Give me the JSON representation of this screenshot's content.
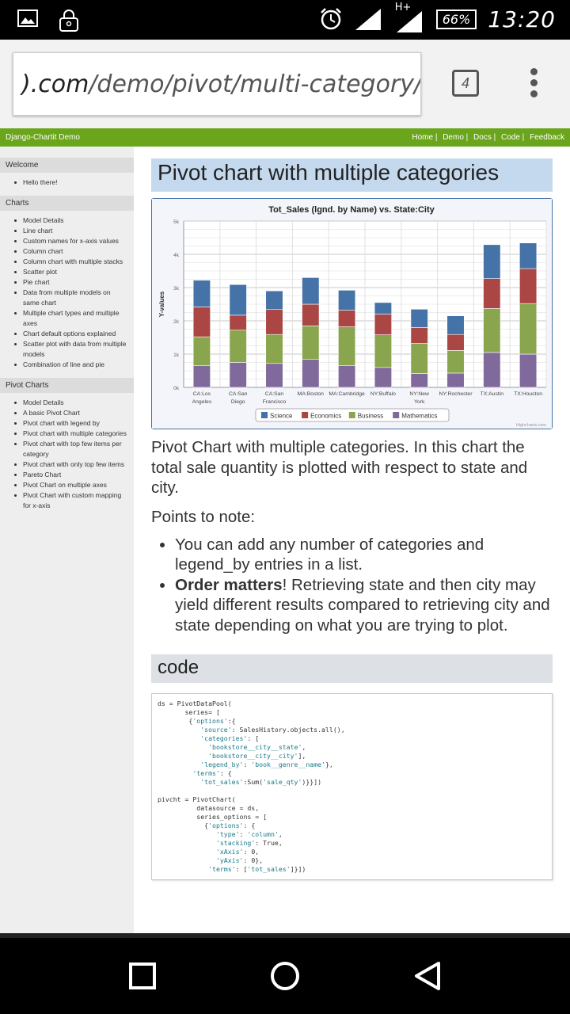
{
  "status": {
    "battery": "66%",
    "time": "13:20",
    "network": "H+"
  },
  "browser": {
    "url_domain": ").com",
    "url_path": "/demo/pivot/multi-category/",
    "tab_count": "4"
  },
  "topnav": {
    "site_title": "Django-Chartit Demo",
    "links": [
      "Home |",
      "Demo |",
      "Docs |",
      "Code |",
      "Feedback"
    ]
  },
  "sidebar": {
    "welcome": {
      "title": "Welcome",
      "items": [
        "Hello there!"
      ]
    },
    "charts": {
      "title": "Charts",
      "items": [
        "Model Details",
        "Line chart",
        "Custom names for x-axis values",
        "Column chart",
        "Column chart with multiple stacks",
        "Scatter plot",
        "Pie chart",
        "Data from multiple models on same chart",
        "Multiple chart types and multiple axes",
        "Chart default options explained",
        "Scatter plot with data from multiple models",
        "Combination of line and pie"
      ]
    },
    "pivot": {
      "title": "Pivot Charts",
      "items": [
        "Model Details",
        "A basic Pivot Chart",
        "Pivot chart with legend by",
        "Pivot chart with multiple categories",
        "Pivot chart with top few items per category",
        "Pivot chart with only top few items",
        "Pareto Chart",
        "Pivot Chart on multiple axes",
        "Pivot Chart with custom mapping for x-axis"
      ]
    }
  },
  "main": {
    "title": "Pivot chart with multiple categories",
    "description": "Pivot Chart with multiple categories. In this chart the total sale quantity is plotted with respect to state and city.",
    "notes_title": "Points to note:",
    "note1": "You can add any number of categories and legend_by entries in a list.",
    "note2_bold": "Order matters",
    "note2_rest": "! Retrieving state and then city may yield different results compared to retrieving city and state depending on what you are trying to plot.",
    "code_title": "code"
  },
  "chart_data": {
    "type": "bar",
    "stacked": true,
    "title": "Tot_Sales (lgnd. by Name) vs. State:City",
    "ylabel": "Y-values",
    "ylim": [
      0,
      5000
    ],
    "yticks": [
      "0k",
      "1k",
      "2k",
      "3k",
      "4k",
      "5k"
    ],
    "categories": [
      [
        "CA:Los",
        "Angeles"
      ],
      [
        "CA:San",
        "Diego"
      ],
      [
        "CA:San",
        "Francisco"
      ],
      [
        "MA:Boston",
        ""
      ],
      [
        "MA:Cambridge",
        ""
      ],
      [
        "NY:Buffalo",
        ""
      ],
      [
        "NY:New",
        "York"
      ],
      [
        "NY:Rochester",
        ""
      ],
      [
        "TX:Austin",
        ""
      ],
      [
        "TX:Houston",
        ""
      ]
    ],
    "series": [
      {
        "name": "Mathematics",
        "color": "#80699b",
        "values": [
          650,
          750,
          720,
          850,
          650,
          600,
          420,
          430,
          1050,
          1000
        ]
      },
      {
        "name": "Business",
        "color": "#89a54e",
        "values": [
          870,
          970,
          870,
          1000,
          1170,
          980,
          900,
          680,
          1320,
          1520
        ]
      },
      {
        "name": "Economics",
        "color": "#aa4643",
        "values": [
          900,
          450,
          750,
          650,
          500,
          620,
          480,
          480,
          900,
          1050
        ]
      },
      {
        "name": "Science",
        "color": "#4572a7",
        "values": [
          800,
          920,
          560,
          800,
          600,
          350,
          550,
          560,
          1020,
          770
        ]
      }
    ],
    "legend_order": [
      "Science",
      "Economics",
      "Business",
      "Mathematics"
    ],
    "credit": "Highcharts.com"
  },
  "code": {
    "lines": [
      [
        [
          "ds = PivotDataPool(",
          ""
        ]
      ],
      [
        [
          "       series= [",
          ""
        ]
      ],
      [
        [
          "        {",
          ""
        ],
        [
          "'options'",
          "s"
        ],
        [
          ":{",
          ""
        ]
      ],
      [
        [
          "           ",
          ""
        ],
        [
          "'source'",
          "s"
        ],
        [
          ": SalesHistory.objects.all(),",
          ""
        ]
      ],
      [
        [
          "           ",
          ""
        ],
        [
          "'categories'",
          "s"
        ],
        [
          ": [",
          ""
        ]
      ],
      [
        [
          "             ",
          ""
        ],
        [
          "'bookstore__city__state'",
          "s"
        ],
        [
          ",",
          ""
        ]
      ],
      [
        [
          "             ",
          ""
        ],
        [
          "'bookstore__city__city'",
          "s"
        ],
        [
          "],",
          ""
        ]
      ],
      [
        [
          "           ",
          ""
        ],
        [
          "'legend_by'",
          "s"
        ],
        [
          ": ",
          ""
        ],
        [
          "'book__genre__name'",
          "s"
        ],
        [
          "},",
          ""
        ]
      ],
      [
        [
          "         ",
          ""
        ],
        [
          "'terms'",
          "s"
        ],
        [
          ": {",
          ""
        ]
      ],
      [
        [
          "           ",
          ""
        ],
        [
          "'tot_sales'",
          "s"
        ],
        [
          ":Sum(",
          ""
        ],
        [
          "'sale_qty'",
          "s"
        ],
        [
          ")}}])",
          ""
        ]
      ],
      [
        [
          "",
          ""
        ]
      ],
      [
        [
          "pivcht = PivotChart(",
          ""
        ]
      ],
      [
        [
          "          datasource = ds,",
          ""
        ]
      ],
      [
        [
          "          series_options = [",
          ""
        ]
      ],
      [
        [
          "            {",
          ""
        ],
        [
          "'options'",
          "s"
        ],
        [
          ": {",
          ""
        ]
      ],
      [
        [
          "               ",
          ""
        ],
        [
          "'type'",
          "s"
        ],
        [
          ": ",
          ""
        ],
        [
          "'column'",
          "s"
        ],
        [
          ",",
          ""
        ]
      ],
      [
        [
          "               ",
          ""
        ],
        [
          "'stacking'",
          "s"
        ],
        [
          ": True,",
          ""
        ]
      ],
      [
        [
          "               ",
          ""
        ],
        [
          "'xAxis'",
          "s"
        ],
        [
          ": 0,",
          ""
        ]
      ],
      [
        [
          "               ",
          ""
        ],
        [
          "'yAxis'",
          "s"
        ],
        [
          ": 0},",
          ""
        ]
      ],
      [
        [
          "             ",
          ""
        ],
        [
          "'terms'",
          "s"
        ],
        [
          ": [",
          ""
        ],
        [
          "'tot_sales'",
          "s"
        ],
        [
          "]}])",
          ""
        ]
      ]
    ]
  }
}
